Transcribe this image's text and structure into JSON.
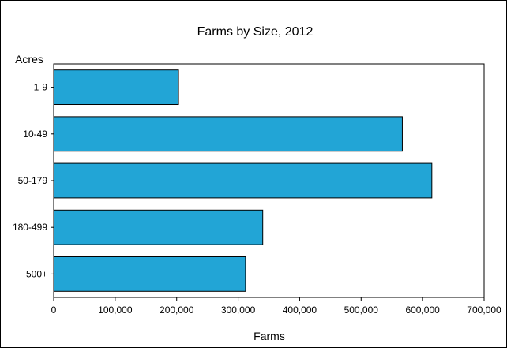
{
  "chart_data": {
    "type": "bar",
    "orientation": "horizontal",
    "title": "Farms by Size, 2012",
    "xlabel": "Farms",
    "ylabel": "Acres",
    "categories": [
      "1-9",
      "10-49",
      "50-179",
      "180-499",
      "500+"
    ],
    "values": [
      203000,
      567000,
      615000,
      340000,
      312000
    ],
    "xlim": [
      0,
      700000
    ],
    "x_ticks": [
      0,
      100000,
      200000,
      300000,
      400000,
      500000,
      600000,
      700000
    ],
    "x_tick_labels": [
      "0",
      "100,000",
      "200,000",
      "300,000",
      "400,000",
      "500,000",
      "600,000",
      "700,000"
    ],
    "grid": false,
    "legend": "none",
    "colors": {
      "bar": "#22A5D6",
      "bar_edge": "#000000",
      "axis": "#000000"
    }
  }
}
